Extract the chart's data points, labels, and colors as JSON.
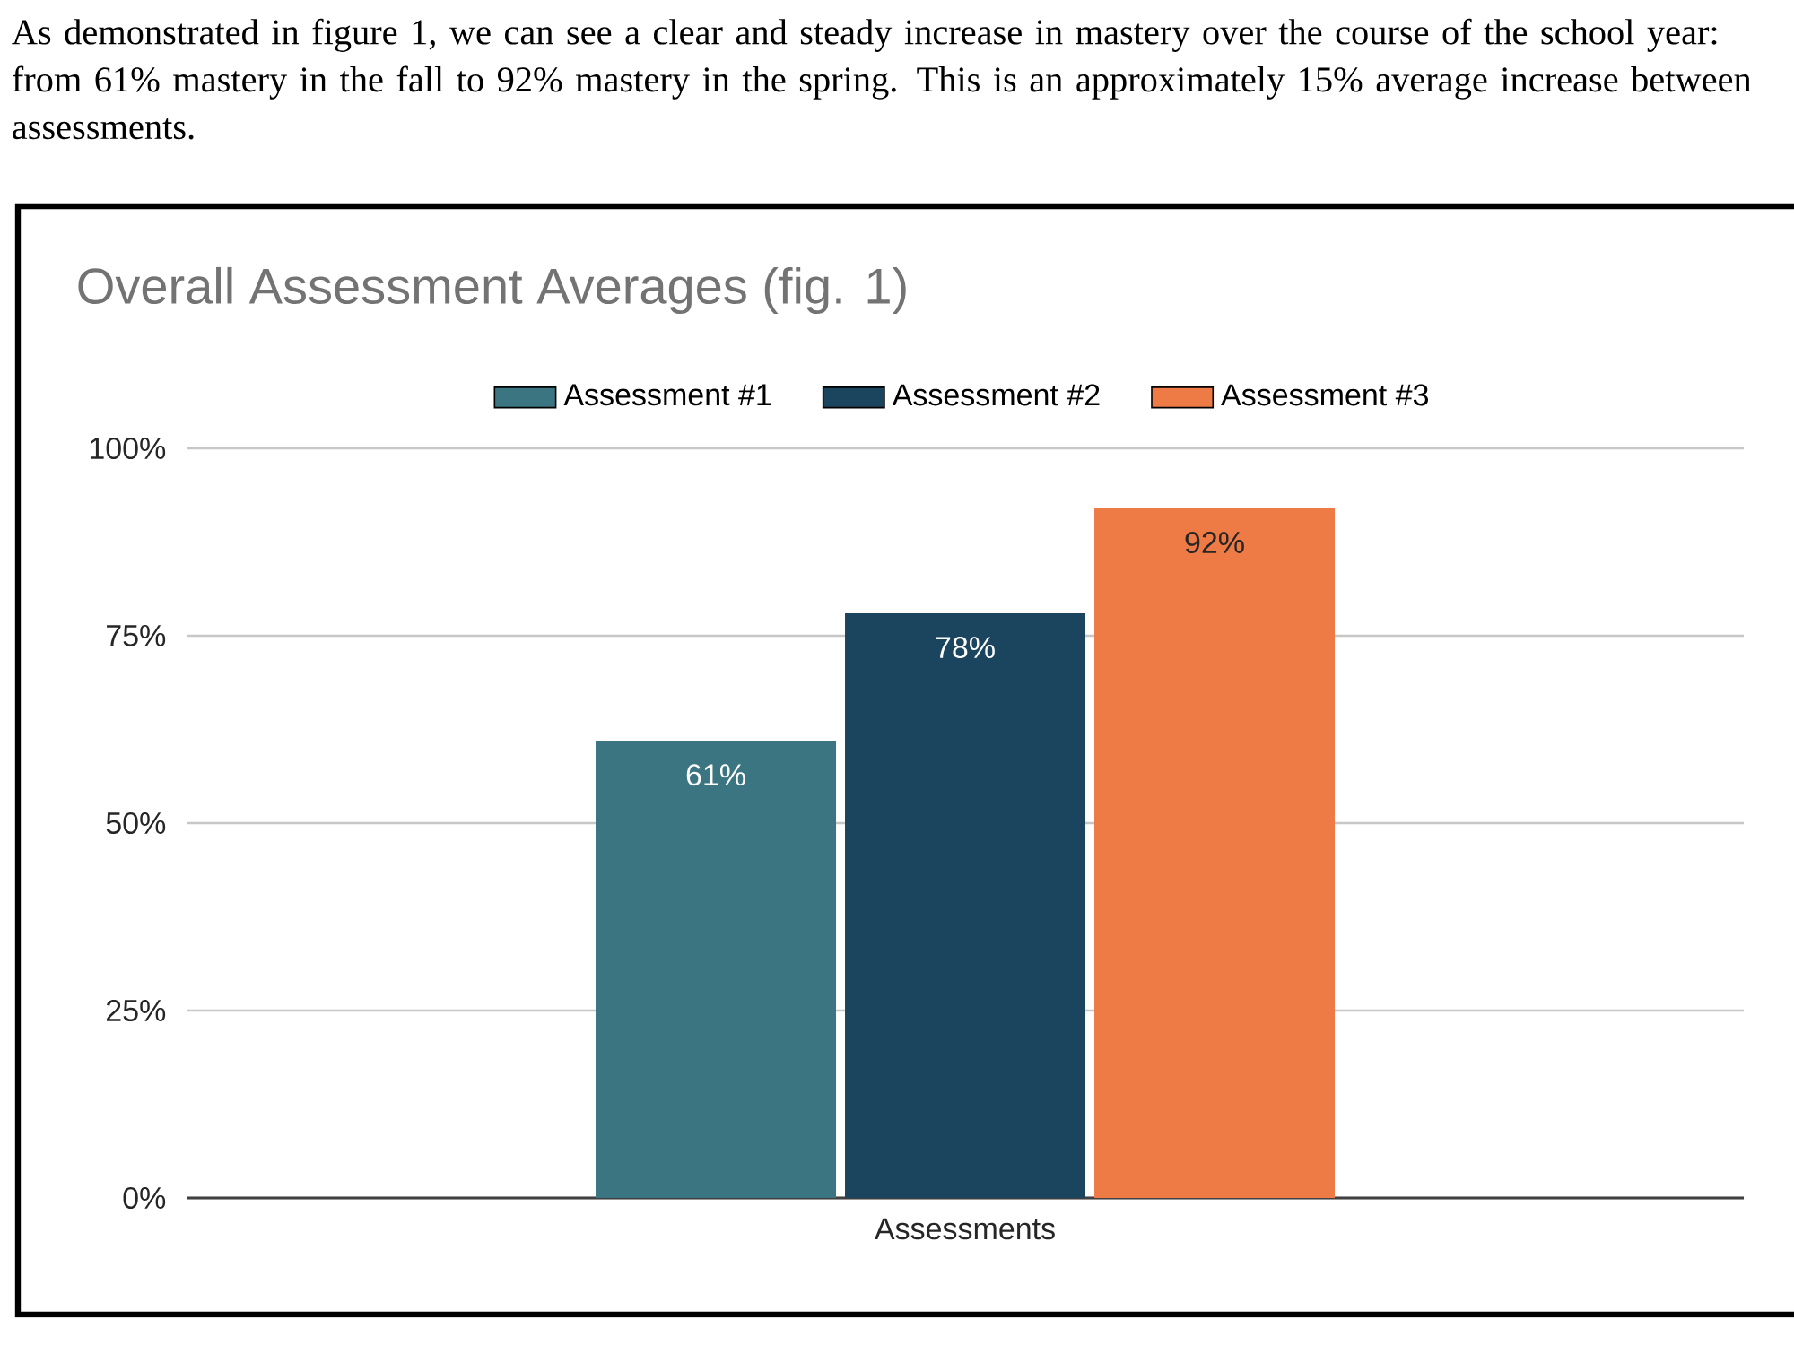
{
  "chart_data": {
    "type": "bar",
    "title": "Overall Assessment Averages (fig. 1)",
    "annotations": [
      "As demonstrated in figure 1, we can see a clear and steady increase in mastery over the course of the school year: from 61% mastery in the fall to 92% mastery in the spring. This is an approximately 15% average increase between assessments."
    ],
    "categories": [
      "Assessments"
    ],
    "series": [
      {
        "name": "Assessment #1",
        "color": "#3b7582",
        "values": [
          61
        ],
        "value_labels": [
          "61%"
        ]
      },
      {
        "name": "Assessment #2",
        "color": "#1b455e",
        "values": [
          78
        ],
        "value_labels": [
          "78%"
        ]
      },
      {
        "name": "Assessment #3",
        "color": "#ee7a46",
        "values": [
          92
        ],
        "value_labels": [
          "92%"
        ]
      }
    ],
    "ylim": [
      0,
      100
    ],
    "yticks": [
      {
        "value": 0,
        "label": "0%"
      },
      {
        "value": 25,
        "label": "25%"
      },
      {
        "value": 50,
        "label": "50%"
      },
      {
        "value": 75,
        "label": "75%"
      },
      {
        "value": 100,
        "label": "100%"
      }
    ],
    "grid": "y",
    "legend": "top"
  }
}
